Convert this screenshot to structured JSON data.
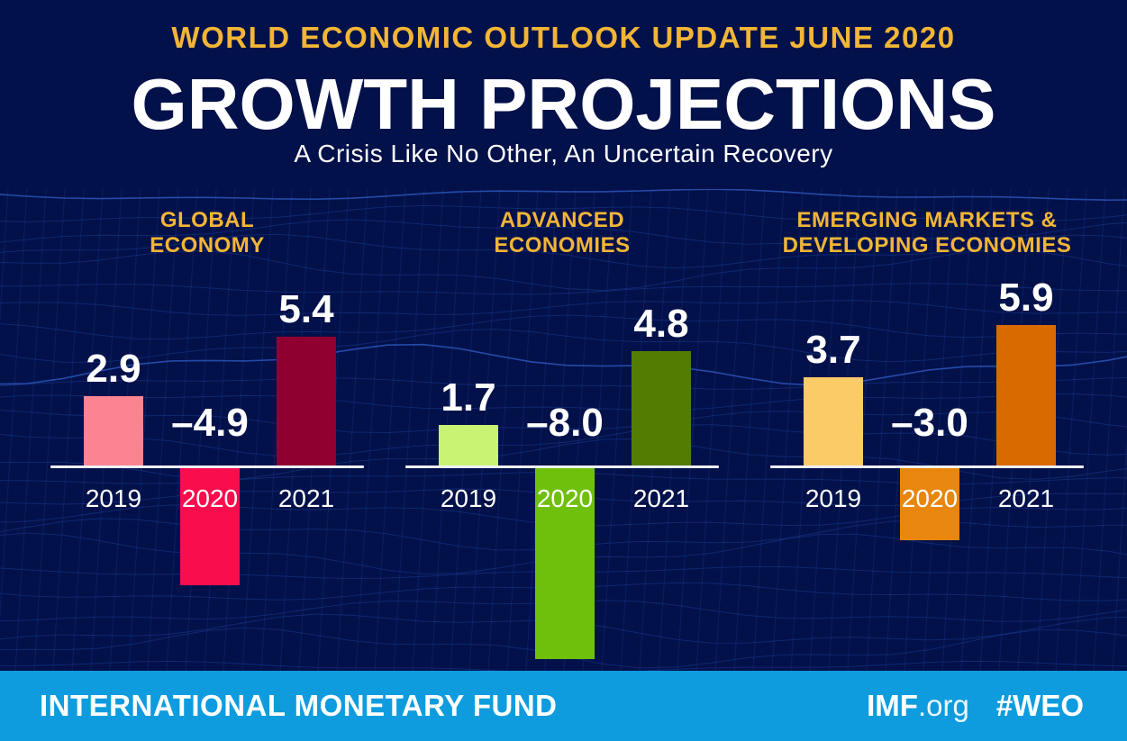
{
  "header": {
    "kicker": "WORLD ECONOMIC OUTLOOK UPDATE JUNE 2020",
    "title": "GROWTH PROJECTIONS",
    "subtitle": "A Crisis Like No Other, An Uncertain Recovery"
  },
  "chart_data": {
    "type": "bar",
    "unit": "percent growth",
    "categories": [
      "2019",
      "2020",
      "2021"
    ],
    "baseline": 0,
    "legend_position": "none",
    "grid": false,
    "groups": [
      {
        "id": "global-economy",
        "title": "GLOBAL ECONOMY",
        "title_lines": [
          "GLOBAL",
          "ECONOMY"
        ],
        "values": [
          2.9,
          -4.9,
          5.4
        ],
        "value_labels": [
          "2.9",
          "–4.9",
          "5.4"
        ],
        "bar_colors": [
          "#FA8492",
          "#FA0D4D",
          "#8F0030"
        ]
      },
      {
        "id": "advanced-economies",
        "title": "ADVANCED ECONOMIES",
        "title_lines": [
          "ADVANCED",
          "ECONOMIES"
        ],
        "values": [
          1.7,
          -8.0,
          4.8
        ],
        "value_labels": [
          "1.7",
          "–8.0",
          "4.8"
        ],
        "bar_colors": [
          "#C9F473",
          "#6FC00B",
          "#527D02"
        ]
      },
      {
        "id": "emerging-markets-developing-economies",
        "title": "EMERGING MARKETS & DEVELOPING ECONOMIES",
        "title_lines": [
          "EMERGING MARKETS &",
          "DEVELOPING ECONOMIES"
        ],
        "values": [
          3.7,
          -3.0,
          5.9
        ],
        "value_labels": [
          "3.7",
          "–3.0",
          "5.9"
        ],
        "bar_colors": [
          "#FACB66",
          "#E8860D",
          "#D96A00"
        ]
      }
    ]
  },
  "footer": {
    "organization": "INTERNATIONAL MONETARY FUND",
    "imf_bold": "IMF",
    "imf_suffix": ".org",
    "hashtag": "#WEO"
  },
  "colors": {
    "background_navy": "#03114A",
    "mesh_line_blue": "#1C3F96",
    "accent_gold": "#F2B535",
    "text_white": "#FFFFFF",
    "axis_line": "#EDF1F8",
    "footer_blue": "#0E9CDF"
  }
}
